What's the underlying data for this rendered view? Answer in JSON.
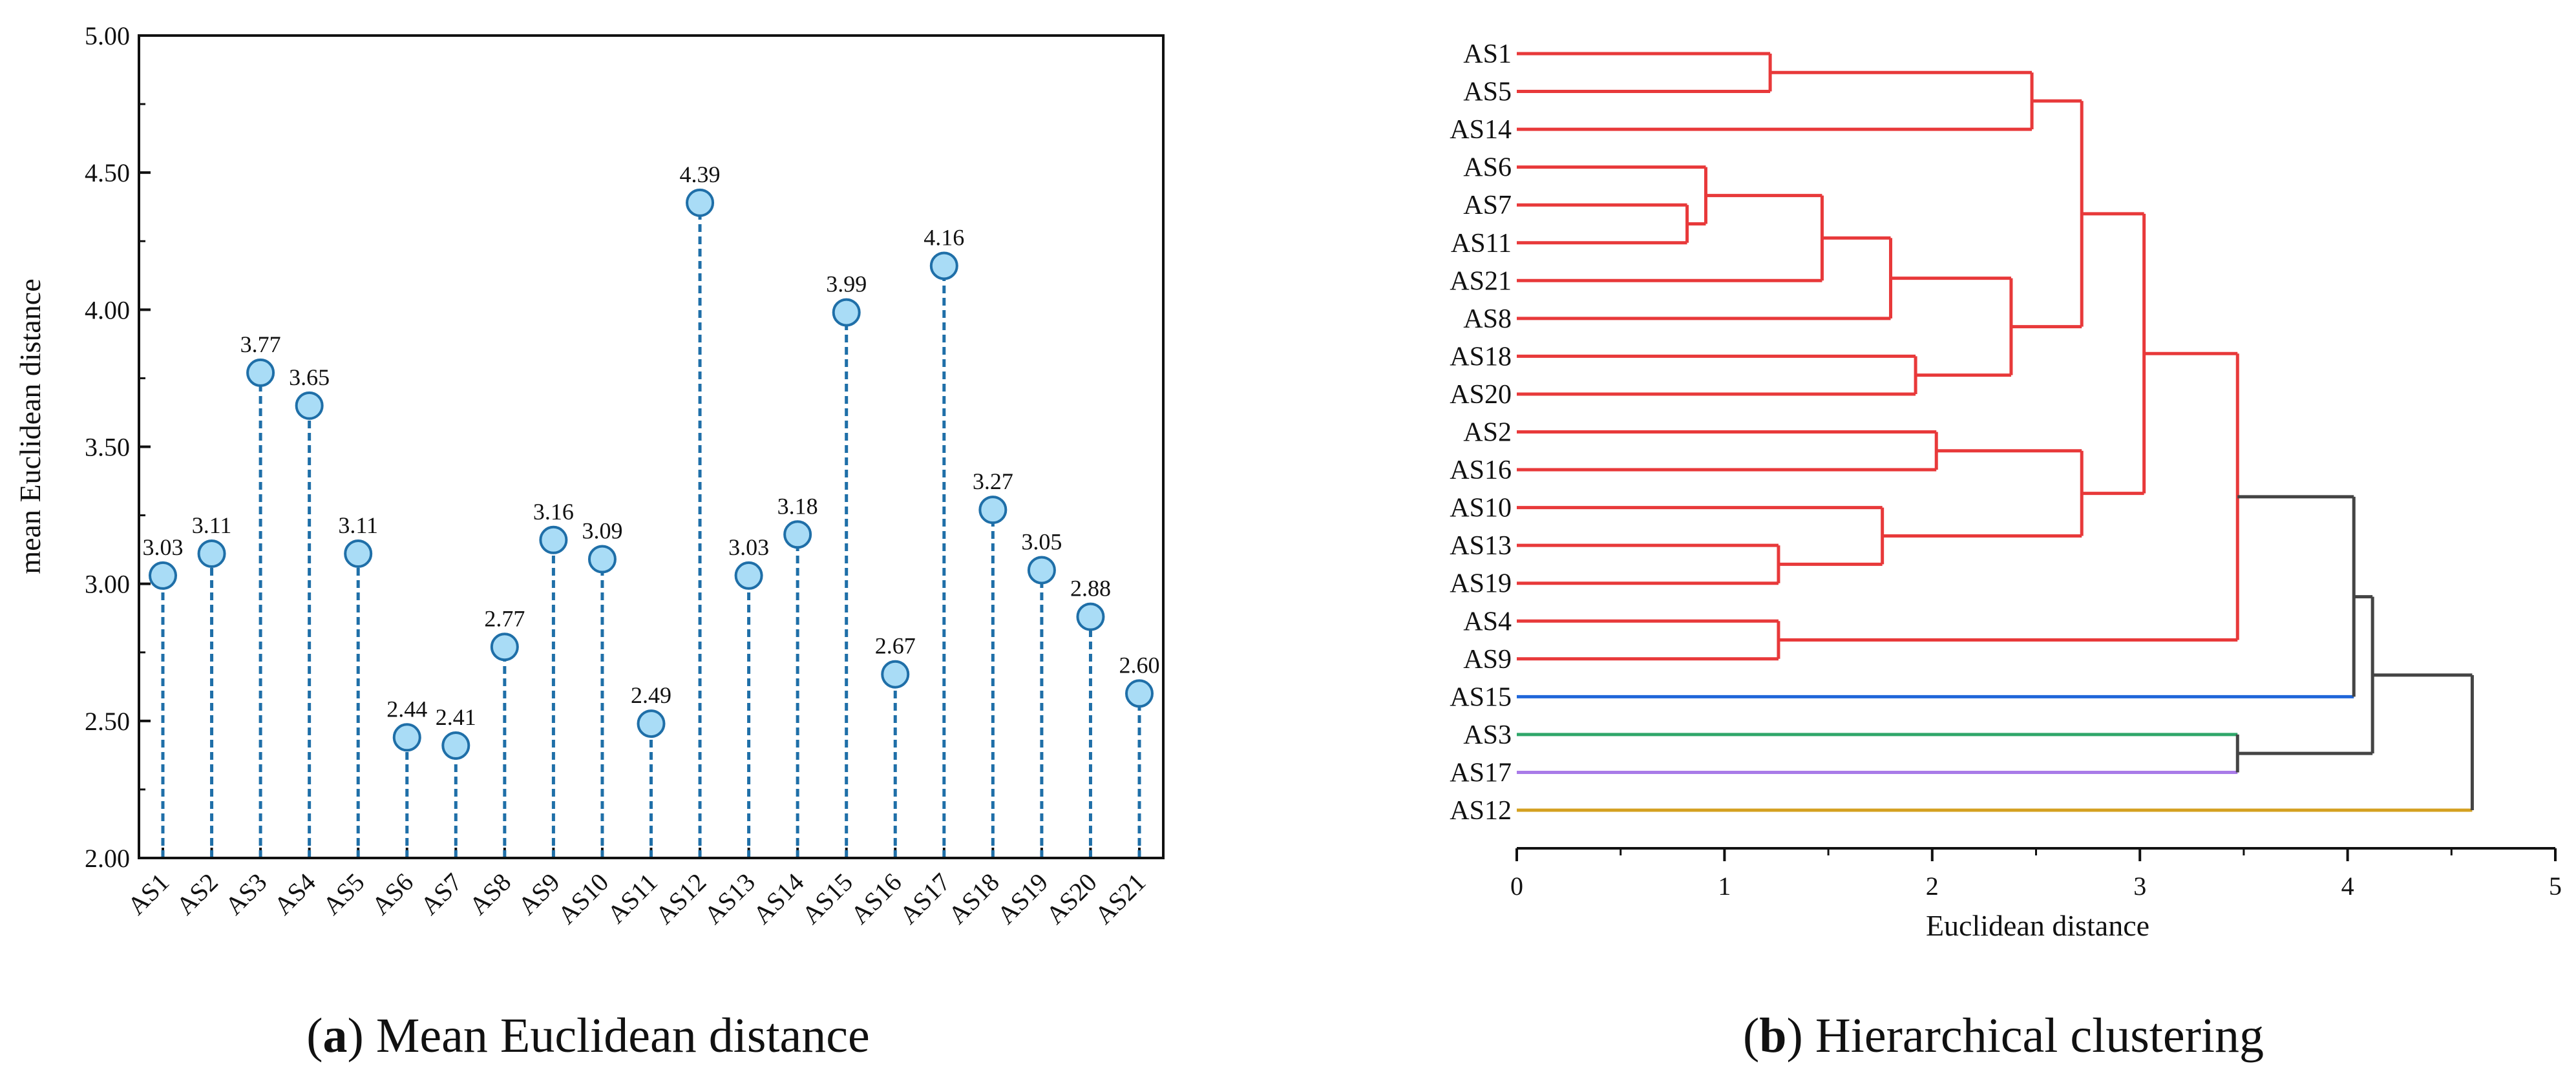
{
  "chart_data": [
    {
      "type": "scatter",
      "subtype": "lollipop",
      "title": "",
      "xlabel": "",
      "ylabel": "mean Euclidean distance",
      "ylim": [
        2.0,
        5.0
      ],
      "yticks": [
        "2.00",
        "2.50",
        "3.00",
        "3.50",
        "4.00",
        "4.50",
        "5.00"
      ],
      "categories": [
        "AS1",
        "AS2",
        "AS3",
        "AS4",
        "AS5",
        "AS6",
        "AS7",
        "AS8",
        "AS9",
        "AS10",
        "AS11",
        "AS12",
        "AS13",
        "AS14",
        "AS15",
        "AS16",
        "AS17",
        "AS18",
        "AS19",
        "AS20",
        "AS21"
      ],
      "values": [
        3.03,
        3.11,
        3.77,
        3.65,
        3.11,
        2.44,
        2.41,
        2.77,
        3.16,
        3.09,
        2.49,
        4.39,
        3.03,
        3.18,
        3.99,
        2.67,
        4.16,
        3.27,
        3.05,
        2.88,
        2.6
      ],
      "value_labels": [
        "3.03",
        "3.11",
        "3.77",
        "3.65",
        "3.11",
        "2.44",
        "2.41",
        "2.77",
        "3.16",
        "3.09",
        "2.49",
        "4.39",
        "3.03",
        "3.18",
        "3.99",
        "2.67",
        "4.16",
        "3.27",
        "3.05",
        "2.88",
        "2.60"
      ],
      "marker_fill": "#a9dcf6",
      "marker_stroke": "#1f6fa8",
      "stem_color": "#1f6fa8",
      "grid": false,
      "caption": {
        "letter": "a",
        "text": "Mean Euclidean distance"
      }
    },
    {
      "type": "dendrogram",
      "xlabel": "Euclidean distance",
      "xlim": [
        0,
        5
      ],
      "xticks": [
        "0",
        "1",
        "2",
        "3",
        "4",
        "5"
      ],
      "leaf_order": [
        "AS1",
        "AS5",
        "AS14",
        "AS6",
        "AS7",
        "AS11",
        "AS21",
        "AS8",
        "AS18",
        "AS20",
        "AS2",
        "AS16",
        "AS10",
        "AS13",
        "AS19",
        "AS4",
        "AS9",
        "AS15",
        "AS3",
        "AS17",
        "AS12"
      ],
      "merges": [
        {
          "a": "AS1",
          "b": "AS5",
          "height": 1.22,
          "color": "red"
        },
        {
          "a": "m1",
          "b": "AS14",
          "height": 2.48,
          "color": "red"
        },
        {
          "a": "AS7",
          "b": "AS11",
          "height": 0.82,
          "color": "red"
        },
        {
          "a": "AS6",
          "b": "m3",
          "height": 0.91,
          "color": "red"
        },
        {
          "a": "m4",
          "b": "AS21",
          "height": 1.47,
          "color": "red"
        },
        {
          "a": "m5",
          "b": "AS8",
          "height": 1.8,
          "color": "red"
        },
        {
          "a": "AS18",
          "b": "AS20",
          "height": 1.92,
          "color": "red"
        },
        {
          "a": "m6",
          "b": "m7",
          "height": 2.38,
          "color": "red"
        },
        {
          "a": "m2",
          "b": "m8",
          "height": 2.72,
          "color": "red"
        },
        {
          "a": "AS2",
          "b": "AS16",
          "height": 2.02,
          "color": "red"
        },
        {
          "a": "AS13",
          "b": "AS19",
          "height": 1.26,
          "color": "red"
        },
        {
          "a": "AS10",
          "b": "m11",
          "height": 1.76,
          "color": "red"
        },
        {
          "a": "m10",
          "b": "m12",
          "height": 2.72,
          "color": "red"
        },
        {
          "a": "m9",
          "b": "m13",
          "height": 3.02,
          "color": "red"
        },
        {
          "a": "AS4",
          "b": "AS9",
          "height": 1.26,
          "color": "red"
        },
        {
          "a": "m14",
          "b": "m15",
          "height": 3.47,
          "color": "red"
        },
        {
          "a": "m16",
          "b": "AS15",
          "height": 4.03,
          "color": "gray"
        },
        {
          "a": "AS3",
          "b": "AS17",
          "height": 3.47,
          "color": "gray"
        },
        {
          "a": "m17",
          "b": "m18",
          "height": 4.12,
          "color": "gray"
        },
        {
          "a": "m19",
          "b": "AS12",
          "height": 4.6,
          "color": "gray"
        }
      ],
      "leaf_colors": {
        "AS15": "blue",
        "AS3": "green",
        "AS17": "purple",
        "AS12": "gold"
      },
      "palette": {
        "red": "#e8393a",
        "gray": "#444444",
        "blue": "#1f66d9",
        "green": "#2fa66a",
        "purple": "#a97be8",
        "gold": "#d4a020"
      },
      "caption": {
        "letter": "b",
        "text": "Hierarchical clustering"
      }
    }
  ]
}
